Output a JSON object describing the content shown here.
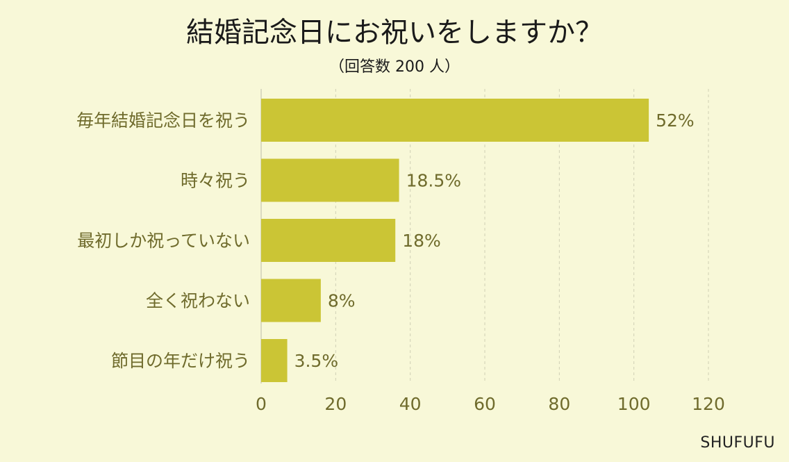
{
  "chart_data": {
    "type": "bar",
    "orientation": "horizontal",
    "title": "結婚記念日にお祝いをしますか？",
    "subtitle": "（回答数 200 人）",
    "categories": [
      "毎年結婚記念日を祝う",
      "時々祝う",
      "最初しか祝っていない",
      "全く祝わない",
      "節目の年だけ祝う"
    ],
    "values": [
      104,
      37,
      36,
      16,
      7
    ],
    "value_labels": [
      "52%",
      "18.5%",
      "18%",
      "8%",
      "3.5%"
    ],
    "xlim": [
      0,
      120
    ],
    "xticks": [
      0,
      20,
      40,
      60,
      80,
      100,
      120
    ],
    "grid": "vertical dashed",
    "legend": "none"
  },
  "colors": {
    "background": "#f8f8d8",
    "bar": "#cbc535",
    "label_text": "#6f6b2c",
    "title_text": "#1a1a1a",
    "grid": "#cfcfb4",
    "axis": "#d0d0b8"
  },
  "watermark": "SHUFUFU"
}
